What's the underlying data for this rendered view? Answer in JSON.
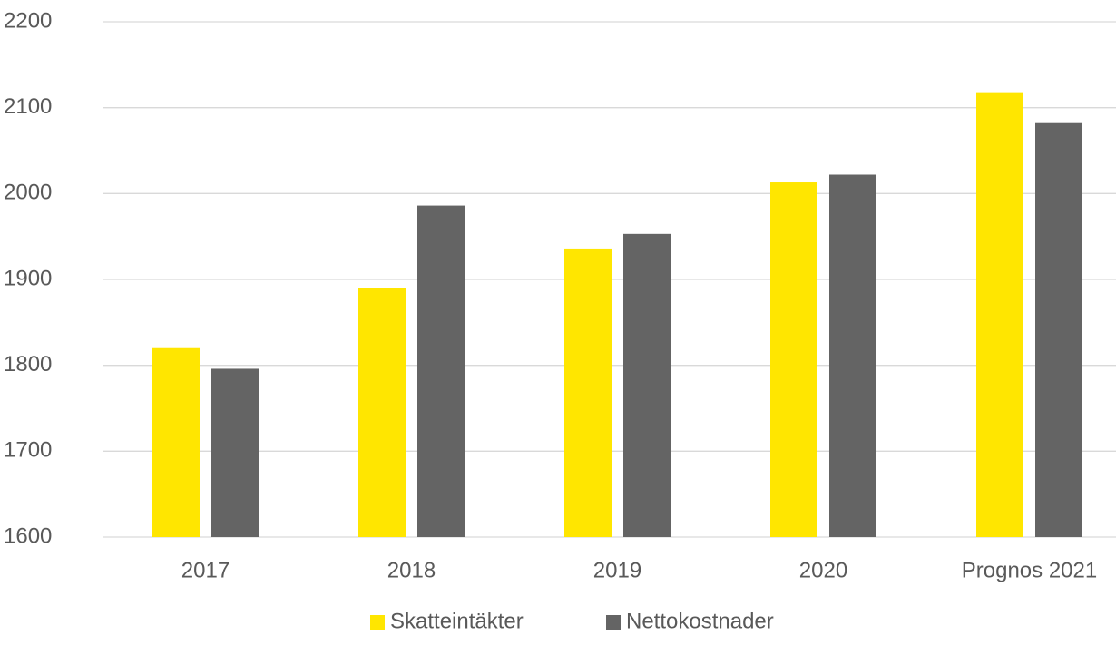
{
  "chart_data": {
    "type": "bar",
    "categories": [
      "2017",
      "2018",
      "2019",
      "2020",
      "Prognos 2021"
    ],
    "series": [
      {
        "name": "Skatteintäkter",
        "color": "#ffe600",
        "values": [
          1820,
          1890,
          1936,
          2013,
          2118
        ]
      },
      {
        "name": "Nettokostnader",
        "color": "#646464",
        "values": [
          1796,
          1986,
          1953,
          2022,
          2082
        ]
      }
    ],
    "ylim": [
      1600,
      2200
    ],
    "yticks": [
      1600,
      1700,
      1800,
      1900,
      2000,
      2100,
      2200
    ],
    "grid": true,
    "legend": "bottom"
  }
}
